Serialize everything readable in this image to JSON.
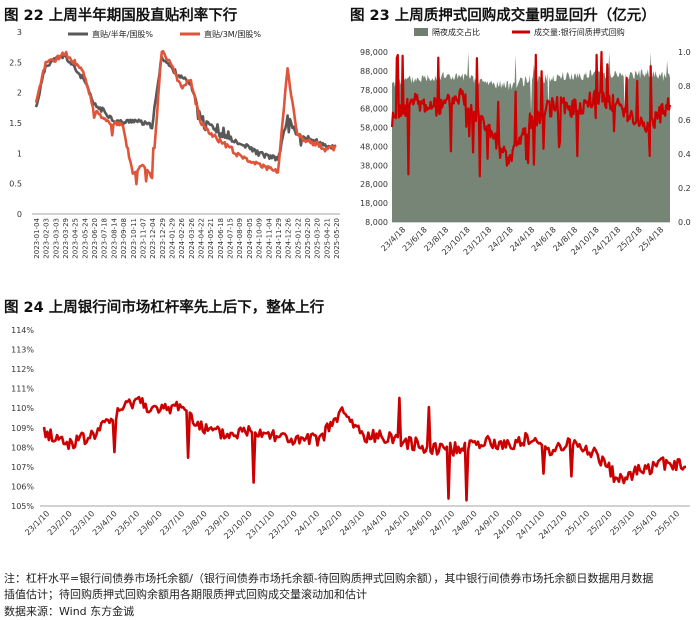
{
  "panels": {
    "p22": {
      "title": "图 22  上周半年期国股直贴利率下行"
    },
    "p23": {
      "title": "图 23  上周质押式回购成交量明显回升（亿元）"
    },
    "p24": {
      "title": "图 24  上周银行间市场杠杆率先上后下，整体上行"
    }
  },
  "notes": {
    "line1": "注：杠杆水平=银行间债券市场托余额/（银行间债券市场托余额-待回购质押式回购余额），其中银行间债券市场托余额日数据用月数据",
    "line2": "插值估计；待回购质押式回购余额用各期限质押式回购成交量滚动加和估计",
    "source": "数据来源：Wind 东方金诚"
  },
  "colors": {
    "dark": "#595757",
    "orange": "#e0553a",
    "red": "#cc0000",
    "green": "#6f7e6e"
  },
  "chart_data": [
    {
      "id": "fig22",
      "type": "line",
      "title": "图 22  上周半年期国股直贴利率下行",
      "ylim": [
        0,
        3
      ],
      "yticks": [
        "0",
        "0.5",
        "1",
        "1.5",
        "2",
        "2.5",
        "3"
      ],
      "x": [
        "2023-01-04",
        "2023-02-03",
        "2023-03-03",
        "2023-03-29",
        "2023-04-25",
        "2023-05-24",
        "2023-06-20",
        "2023-07-18",
        "2023-08-14",
        "2023-09-08",
        "2023-10-11",
        "2023-11-07",
        "2023-12-04",
        "2023-12-29",
        "2024-01-29",
        "2024-02-26",
        "2024-03-26",
        "2024-04-22",
        "2024-05-21",
        "2024-06-18",
        "2024-07-15",
        "2024-08-09",
        "2024-09-05",
        "2024-10-09",
        "2024-11-04",
        "2024-11-29",
        "2024-12-26",
        "2025-01-22",
        "2025-02-20",
        "2025-03-20",
        "2025-04-21",
        "2025-05-20"
      ],
      "series": [
        {
          "name": "直贴/半年/国股%",
          "color": "#595757",
          "values": [
            1.75,
            2.45,
            2.55,
            2.6,
            2.4,
            2.2,
            1.8,
            1.7,
            1.55,
            1.5,
            1.55,
            1.5,
            1.45,
            2.6,
            2.4,
            2.25,
            2.15,
            1.6,
            1.5,
            1.3,
            1.25,
            1.15,
            1.1,
            1.0,
            0.95,
            0.9,
            1.6,
            1.3,
            1.25,
            1.2,
            1.1,
            1.12
          ]
        },
        {
          "name": "直贴/3M/国股%",
          "color": "#e0553a",
          "values": [
            1.8,
            2.5,
            2.55,
            2.65,
            2.5,
            2.3,
            1.7,
            1.55,
            1.5,
            1.45,
            0.65,
            0.8,
            0.6,
            2.7,
            2.45,
            2.1,
            2.2,
            1.5,
            1.35,
            1.2,
            1.1,
            0.95,
            0.9,
            0.8,
            0.75,
            0.7,
            2.4,
            1.3,
            1.2,
            1.15,
            1.05,
            1.1
          ]
        }
      ]
    },
    {
      "id": "fig23",
      "type": "area",
      "title": "图 23  上周质押式回购成交量明显回升（亿元）",
      "ylim_left": [
        8000,
        98000
      ],
      "yticks_left": [
        "8,000",
        "18,000",
        "28,000",
        "38,000",
        "48,000",
        "58,000",
        "68,000",
        "78,000",
        "88,000",
        "98,000"
      ],
      "ylim_right": [
        0,
        1.0
      ],
      "yticks_right": [
        "0.0",
        "0.2",
        "0.4",
        "0.6",
        "0.8",
        "1.0"
      ],
      "x": [
        "23/4/18",
        "23/6/18",
        "23/8/18",
        "23/10/18",
        "23/12/18",
        "24/2/18",
        "24/4/18",
        "24/6/18",
        "24/8/18",
        "24/10/18",
        "24/12/18",
        "25/2/18",
        "25/4/18"
      ],
      "series": [
        {
          "name": "隔夜成交占比",
          "axis": "right",
          "color": "#6f7e6e",
          "values": [
            0.82,
            0.84,
            0.86,
            0.85,
            0.82,
            0.8,
            0.84,
            0.85,
            0.86,
            0.88,
            0.86,
            0.87,
            0.85
          ]
        },
        {
          "name": "成交量:银行间质押式回购",
          "axis": "left",
          "color": "#cc0000",
          "values": [
            62000,
            72000,
            68000,
            76000,
            60000,
            40000,
            62000,
            70000,
            68000,
            75000,
            68000,
            58000,
            70000
          ]
        }
      ]
    },
    {
      "id": "fig24",
      "type": "line",
      "title": "图 24  上周银行间市场杠杆率先上后下，整体上行",
      "ylim": [
        105,
        114
      ],
      "yticks": [
        "105%",
        "106%",
        "107%",
        "108%",
        "109%",
        "110%",
        "111%",
        "112%",
        "113%",
        "114%"
      ],
      "x": [
        "23/1/10",
        "23/2/10",
        "23/3/10",
        "23/4/10",
        "23/5/10",
        "23/6/10",
        "23/7/10",
        "23/8/10",
        "23/9/10",
        "23/10/10",
        "23/11/10",
        "23/12/10",
        "24/1/10",
        "24/2/10",
        "24/3/10",
        "24/4/10",
        "24/5/10",
        "24/6/10",
        "24/7/10",
        "24/8/10",
        "24/9/10",
        "24/10/10",
        "24/11/10",
        "24/12/10",
        "25/1/10",
        "25/2/10",
        "25/3/10",
        "25/4/10",
        "25/5/10"
      ],
      "series": [
        {
          "name": "杠杆率",
          "color": "#cc0000",
          "values": [
            108.8,
            108.2,
            108.5,
            109.5,
            110.5,
            109.8,
            110.2,
            108.9,
            108.6,
            108.9,
            108.7,
            108.3,
            108.4,
            109.8,
            108.5,
            108.6,
            108.2,
            108.0,
            107.9,
            108.3,
            108.1,
            108.4,
            107.9,
            108.2,
            107.7,
            106.4,
            106.8,
            107.2,
            107.0
          ]
        }
      ]
    }
  ]
}
